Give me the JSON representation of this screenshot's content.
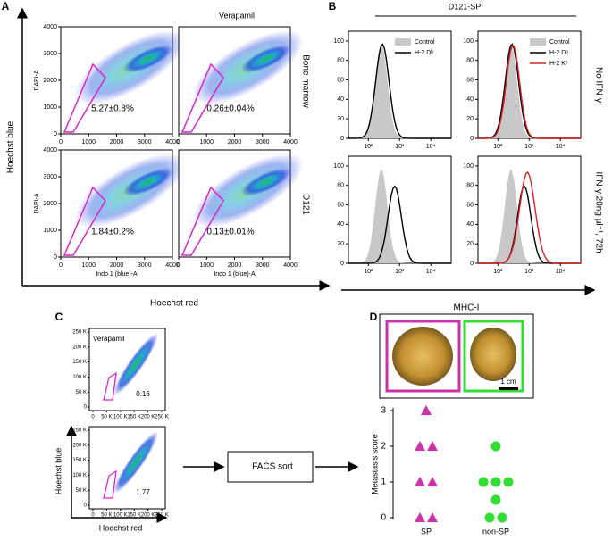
{
  "panel_labels": [
    "A",
    "B",
    "C",
    "D"
  ],
  "panel_a": {
    "ylabel": "Hoechst blue",
    "xlabel": "Hoechst red",
    "col_title": "Verapamil",
    "row_labels": [
      "Bone marrow",
      "D121"
    ],
    "plot_ylabel": "DAPI-A",
    "plot_xlabel": "Indo 1 (blue)-A",
    "ticks": [
      0,
      1000,
      2000,
      3000,
      4000
    ],
    "lim": [
      0,
      4000
    ],
    "percentages": [
      "5.27±0.8%",
      "0.26±0.04%",
      "1.84±0.2%",
      "0.13±0.01%"
    ]
  },
  "panel_b": {
    "title": "D121-SP",
    "xlabel": "MHC-I",
    "ylim": [
      0,
      110
    ],
    "yticks": [
      0,
      20,
      40,
      60,
      80,
      100
    ],
    "xlim": [
      23,
      45000
    ],
    "xticks": [
      {
        "value": 100,
        "label": "10²"
      },
      {
        "value": 1000,
        "label": "10³"
      },
      {
        "value": 10000,
        "label": "10⁴"
      }
    ],
    "legend_left": [
      {
        "name": "Control",
        "color": "#c8c8c8"
      },
      {
        "name": "H-2 Dᵇ",
        "color": "#000000"
      }
    ],
    "legend_right": [
      {
        "name": "Control",
        "color": "#c8c8c8"
      },
      {
        "name": "H-2 Dᵇ",
        "color": "#000000"
      },
      {
        "name": "H-2 Kᵇ",
        "color": "#dd2222"
      }
    ],
    "row_labels": [
      "No IFN-γ",
      "IFN-γ 20ng µl⁻¹, 72h"
    ]
  },
  "panel_c": {
    "plot_label": "Verapamil",
    "yticks": [
      "250 K",
      "200 K",
      "150 K",
      "100 K",
      "50 K",
      "0"
    ],
    "xticks": [
      "0",
      "50 K",
      "100 K",
      "150 K",
      "200 K",
      "250 K"
    ],
    "gate_values": [
      "0.16",
      "1.77"
    ],
    "ylabel": "Hoechst blue",
    "xlabel": "Hoechst red",
    "step": "FACS sort"
  },
  "panel_d": {
    "ylabel": "Metastasis score",
    "ylim": [
      0,
      3
    ],
    "yticks": [
      0,
      1,
      2,
      3
    ],
    "scale_bar": "1 cm",
    "groups": [
      {
        "name": "SP",
        "color": "#cc33aa",
        "marker": "triangle",
        "values": [
          3,
          2,
          2,
          1,
          1,
          0,
          0
        ]
      },
      {
        "name": "non-SP",
        "color": "#33dd33",
        "marker": "circle",
        "values": [
          2,
          1,
          1,
          1,
          0.5,
          0,
          0
        ]
      }
    ]
  }
}
